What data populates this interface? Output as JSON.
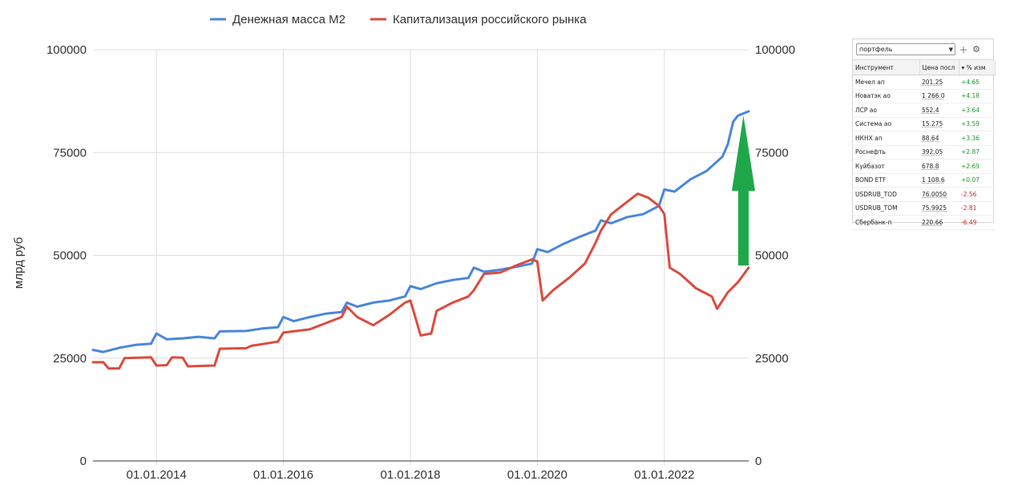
{
  "chart_data": {
    "type": "line",
    "title": "",
    "xlabel": "",
    "ylabel": "млрд руб",
    "ylim": [
      0,
      100000
    ],
    "yticks": [
      0,
      25000,
      50000,
      75000,
      100000
    ],
    "xticks": [
      "01.01.2014",
      "01.01.2016",
      "01.01.2018",
      "01.01.2020",
      "01.01.2022"
    ],
    "xrange": [
      "2013-01-01",
      "2023-05-01"
    ],
    "legend_position": "top-center",
    "grid": true,
    "series": [
      {
        "name": "Денежная масса М2",
        "color": "#4a86dd",
        "points": [
          [
            "2013-01-01",
            27000
          ],
          [
            "2013-03-01",
            26500
          ],
          [
            "2013-06-01",
            27500
          ],
          [
            "2013-09-01",
            28200
          ],
          [
            "2013-12-01",
            28500
          ],
          [
            "2014-01-01",
            31000
          ],
          [
            "2014-03-01",
            29600
          ],
          [
            "2014-06-01",
            29800
          ],
          [
            "2014-09-01",
            30200
          ],
          [
            "2014-12-01",
            29800
          ],
          [
            "2015-01-01",
            31500
          ],
          [
            "2015-06-01",
            31600
          ],
          [
            "2015-09-01",
            32200
          ],
          [
            "2015-12-01",
            32500
          ],
          [
            "2016-01-01",
            35000
          ],
          [
            "2016-03-01",
            34000
          ],
          [
            "2016-06-01",
            35000
          ],
          [
            "2016-09-01",
            35800
          ],
          [
            "2016-12-01",
            36200
          ],
          [
            "2017-01-01",
            38500
          ],
          [
            "2017-03-01",
            37500
          ],
          [
            "2017-06-01",
            38500
          ],
          [
            "2017-09-01",
            39000
          ],
          [
            "2017-12-01",
            40000
          ],
          [
            "2018-01-01",
            42500
          ],
          [
            "2018-03-01",
            41800
          ],
          [
            "2018-06-01",
            43200
          ],
          [
            "2018-09-01",
            44000
          ],
          [
            "2018-12-01",
            44500
          ],
          [
            "2019-01-01",
            47000
          ],
          [
            "2019-03-01",
            46000
          ],
          [
            "2019-06-01",
            46500
          ],
          [
            "2019-09-01",
            47200
          ],
          [
            "2019-12-01",
            48000
          ],
          [
            "2020-01-01",
            51500
          ],
          [
            "2020-03-01",
            50800
          ],
          [
            "2020-06-01",
            52800
          ],
          [
            "2020-09-01",
            54500
          ],
          [
            "2020-12-01",
            56000
          ],
          [
            "2021-01-01",
            58500
          ],
          [
            "2021-03-01",
            57800
          ],
          [
            "2021-06-01",
            59300
          ],
          [
            "2021-09-01",
            60000
          ],
          [
            "2021-12-01",
            62000
          ],
          [
            "2022-01-01",
            66000
          ],
          [
            "2022-03-01",
            65500
          ],
          [
            "2022-06-01",
            68500
          ],
          [
            "2022-09-01",
            70500
          ],
          [
            "2022-12-01",
            74000
          ],
          [
            "2023-01-01",
            77000
          ],
          [
            "2023-02-01",
            82500
          ],
          [
            "2023-03-01",
            84000
          ],
          [
            "2023-05-01",
            85000
          ]
        ]
      },
      {
        "name": "Капитализация российского рынка",
        "color": "#dc4b3e",
        "points": [
          [
            "2013-01-01",
            24000
          ],
          [
            "2013-03-01",
            24000
          ],
          [
            "2013-04-01",
            22500
          ],
          [
            "2013-06-01",
            22500
          ],
          [
            "2013-07-01",
            25000
          ],
          [
            "2013-12-01",
            25200
          ],
          [
            "2014-01-01",
            23200
          ],
          [
            "2014-03-01",
            23300
          ],
          [
            "2014-04-01",
            25200
          ],
          [
            "2014-06-01",
            25100
          ],
          [
            "2014-07-01",
            23000
          ],
          [
            "2014-12-01",
            23200
          ],
          [
            "2015-01-01",
            27300
          ],
          [
            "2015-06-01",
            27400
          ],
          [
            "2015-07-01",
            28000
          ],
          [
            "2015-12-01",
            29000
          ],
          [
            "2016-01-01",
            31200
          ],
          [
            "2016-06-01",
            32000
          ],
          [
            "2016-09-01",
            33500
          ],
          [
            "2016-12-01",
            35000
          ],
          [
            "2017-01-01",
            37500
          ],
          [
            "2017-03-01",
            35000
          ],
          [
            "2017-06-01",
            33000
          ],
          [
            "2017-09-01",
            35500
          ],
          [
            "2017-12-01",
            38500
          ],
          [
            "2018-01-01",
            39000
          ],
          [
            "2018-03-01",
            30500
          ],
          [
            "2018-05-01",
            31000
          ],
          [
            "2018-06-01",
            36500
          ],
          [
            "2018-09-01",
            38500
          ],
          [
            "2018-12-01",
            40000
          ],
          [
            "2019-01-01",
            41500
          ],
          [
            "2019-03-01",
            45500
          ],
          [
            "2019-06-01",
            45800
          ],
          [
            "2019-09-01",
            47500
          ],
          [
            "2019-12-01",
            49000
          ],
          [
            "2020-01-01",
            48500
          ],
          [
            "2020-02-01",
            39000
          ],
          [
            "2020-04-01",
            41500
          ],
          [
            "2020-07-01",
            44500
          ],
          [
            "2020-10-01",
            48000
          ],
          [
            "2020-12-01",
            53000
          ],
          [
            "2021-01-01",
            56000
          ],
          [
            "2021-03-01",
            60000
          ],
          [
            "2021-06-01",
            63000
          ],
          [
            "2021-08-01",
            65000
          ],
          [
            "2021-10-01",
            64000
          ],
          [
            "2021-12-01",
            62000
          ],
          [
            "2022-01-01",
            60000
          ],
          [
            "2022-02-01",
            47000
          ],
          [
            "2022-04-01",
            45500
          ],
          [
            "2022-07-01",
            42000
          ],
          [
            "2022-10-01",
            40000
          ],
          [
            "2022-11-01",
            37000
          ],
          [
            "2023-01-01",
            41000
          ],
          [
            "2023-03-01",
            43500
          ],
          [
            "2023-05-01",
            47000
          ]
        ]
      }
    ],
    "annotations": [
      {
        "type": "arrow",
        "direction": "up",
        "color": "#1fa84a",
        "from": [
          "2023-04-01",
          47500
        ],
        "to": [
          "2023-04-01",
          84000
        ]
      }
    ]
  },
  "widget": {
    "selector_value": "портфель",
    "headers": [
      "Инструмент",
      "Цена посл",
      "% изм"
    ],
    "rows": [
      {
        "name": "Мечел ап",
        "price": "201.25",
        "change": "+4.65",
        "trend": "up"
      },
      {
        "name": "Новатэк ао",
        "price": "1 266.0",
        "change": "+4.18",
        "trend": "up"
      },
      {
        "name": "ЛСР ао",
        "price": "552.4",
        "change": "+3.64",
        "trend": "up"
      },
      {
        "name": "Система ао",
        "price": "15.275",
        "change": "+3.59",
        "trend": "up"
      },
      {
        "name": "НКНХ ап",
        "price": "88.64",
        "change": "+3.36",
        "trend": "up"
      },
      {
        "name": "Роснефть",
        "price": "392.05",
        "change": "+2.87",
        "trend": "up"
      },
      {
        "name": "Куйбазот",
        "price": "678.8",
        "change": "+2.69",
        "trend": "up"
      },
      {
        "name": "BOND ETF",
        "price": "1 108.6",
        "change": "+0.07",
        "trend": "up"
      },
      {
        "name": "USDRUB_TOD",
        "price": "76.0050",
        "change": "-2.56",
        "trend": "down"
      },
      {
        "name": "USDRUB_TOM",
        "price": "75.9925",
        "change": "-2.81",
        "trend": "down"
      },
      {
        "name": "Сбербанк-п",
        "price": "220.66",
        "change": "-6.49",
        "trend": "down"
      }
    ]
  }
}
